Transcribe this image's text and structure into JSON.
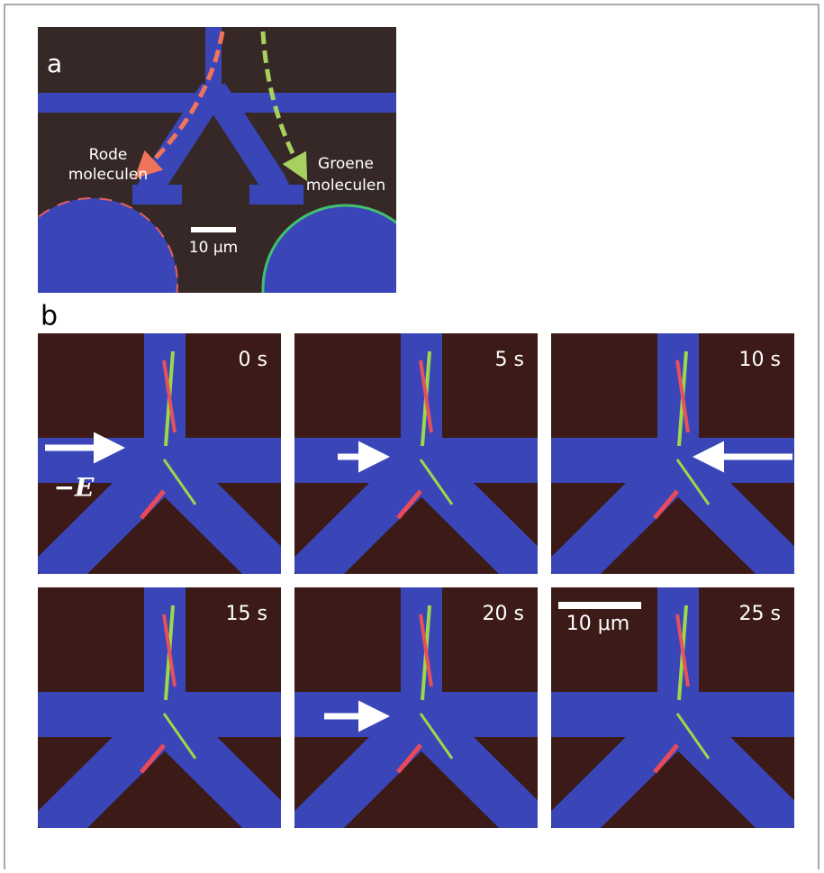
{
  "panel_a": {
    "label": "a",
    "left_label": [
      "Rode",
      "moleculen"
    ],
    "right_label": [
      "Groene",
      "moleculen"
    ],
    "scale_bar": "10 μm"
  },
  "panel_b": {
    "label": "b",
    "frames": [
      {
        "time": "0 s"
      },
      {
        "time": "5 s"
      },
      {
        "time": "10 s"
      },
      {
        "time": "15 s"
      },
      {
        "time": "20 s"
      },
      {
        "time": "25 s"
      }
    ],
    "field_label": "−E",
    "scale_bar": "10 μm"
  }
}
